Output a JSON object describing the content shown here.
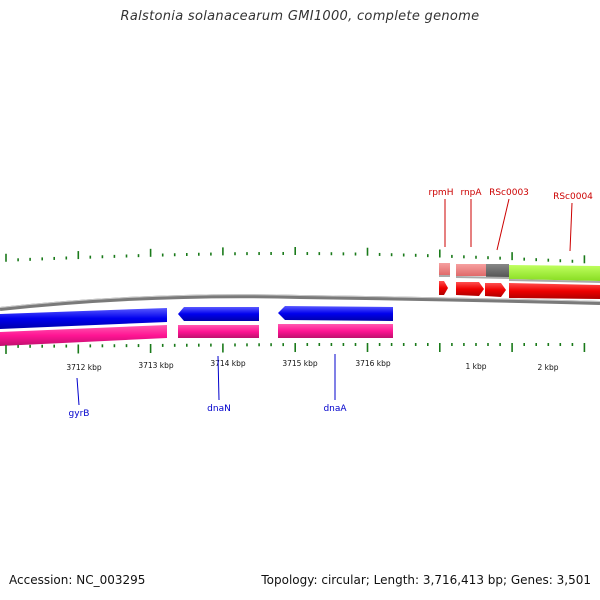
{
  "title": "Ralstonia solanacearum GMI1000, complete genome",
  "footer": {
    "accession": "Accession: NC_003295",
    "summary": "Topology: circular; Length: 3,716,413 bp; Genes: 3,501"
  },
  "tick_labels": [
    "3712 kbp",
    "3713 kbp",
    "3714 kbp",
    "3715 kbp",
    "3716 kbp",
    "1 kbp",
    "2 kbp"
  ],
  "genes_outer": [
    "rpmH",
    "rnpA",
    "RSc0003",
    "RSc0004"
  ],
  "genes_inner": [
    "gyrB",
    "dnaN",
    "dnaA"
  ],
  "colors": {
    "forward_cds": "#ff0000",
    "reverse_cds": "#0000ff",
    "forward_gene": "#f08080",
    "reverse_gene": "#ff1493",
    "misc_feature": "#666666",
    "hypothetical": "#99ee33",
    "tick": "#1a7a1a",
    "backbone": "#888888",
    "forward_label": "#cc0000",
    "reverse_label": "#0000cc"
  }
}
